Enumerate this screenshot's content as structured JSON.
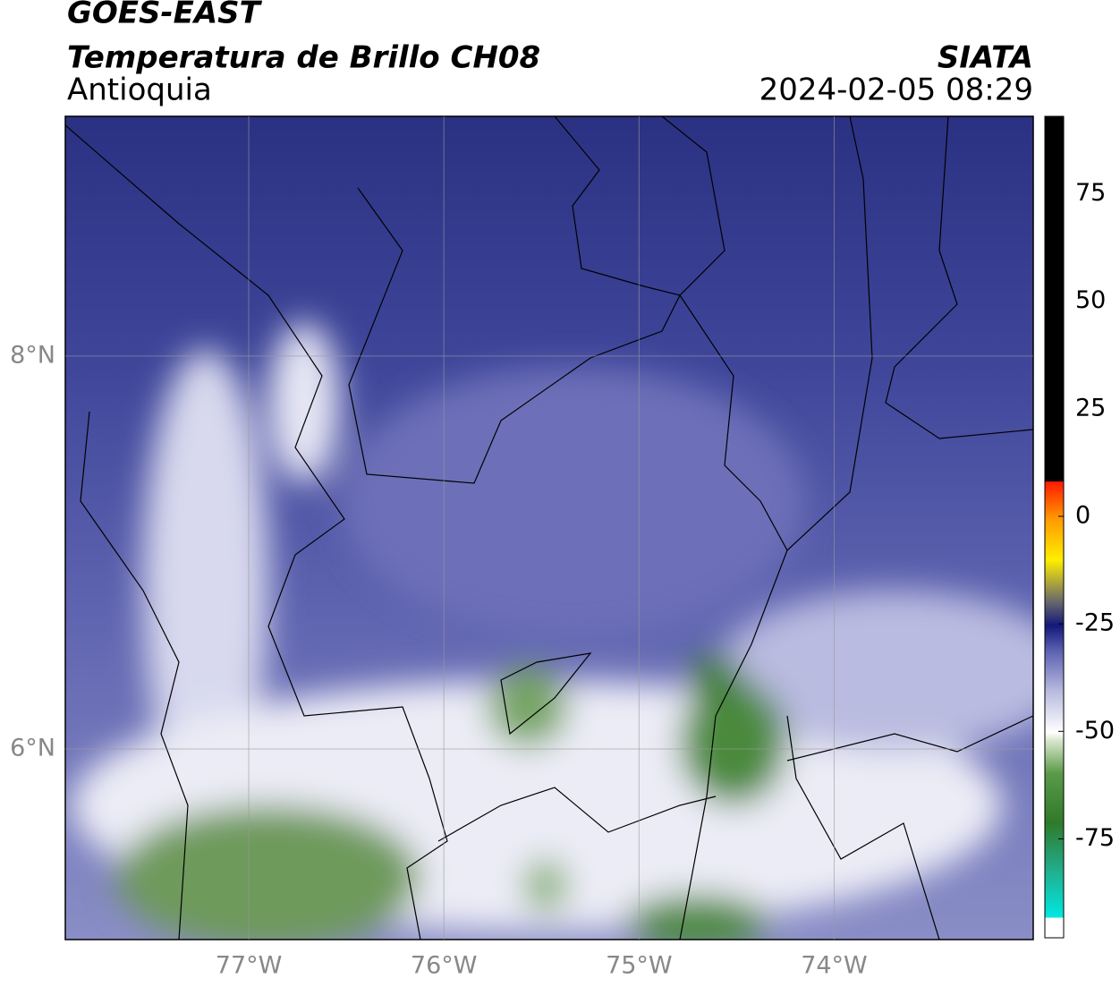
{
  "header": {
    "title": "GOES-EAST",
    "subtitle": "Temperatura de Brillo CH08",
    "region": "Antioquia",
    "source": "SIATA",
    "datetime": "2024-02-05 08:29"
  },
  "map": {
    "xlim": [
      -77.94,
      -72.98
    ],
    "ylim": [
      5.03,
      9.22
    ],
    "xticks": [
      {
        "value": -77,
        "label": "77°W"
      },
      {
        "value": -76,
        "label": "76°W"
      },
      {
        "value": -75,
        "label": "75°W"
      },
      {
        "value": -74,
        "label": "74°W"
      }
    ],
    "yticks": [
      {
        "value": 8,
        "label": "8°N"
      },
      {
        "value": 6,
        "label": "6°N"
      }
    ],
    "grid": true
  },
  "colorbar": {
    "lim": [
      -98,
      93
    ],
    "ticks": [
      75,
      50,
      25,
      0,
      -25,
      -50,
      -75
    ]
  }
}
